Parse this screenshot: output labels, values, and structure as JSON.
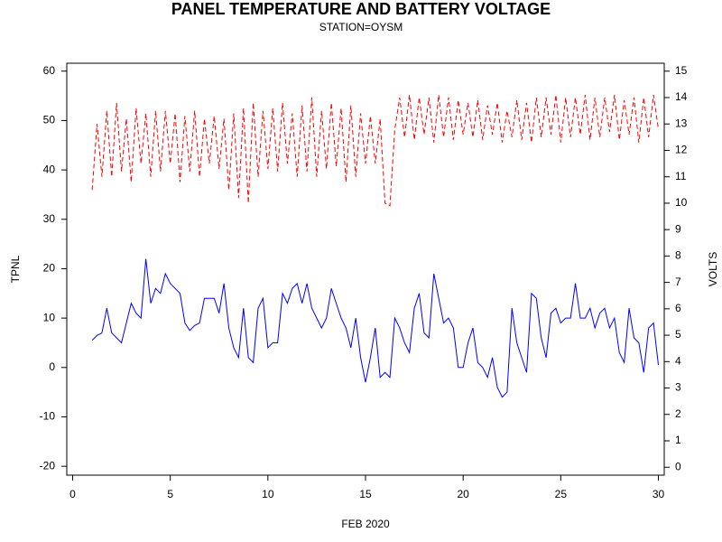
{
  "chart_data": {
    "type": "line",
    "title": "PANEL TEMPERATURE AND BATTERY VOLTAGE",
    "subtitle": "STATION=OYSM",
    "x_label": "FEB 2020",
    "y_label": "TPNL",
    "y2_label": "VOLTS",
    "xlim": [
      -0.3,
      30.3
    ],
    "xticks": [
      0,
      5,
      10,
      15,
      20,
      25,
      30
    ],
    "ylim": [
      -21.8,
      61.6
    ],
    "yticks": [
      -20,
      -10,
      0,
      10,
      20,
      30,
      40,
      50,
      60
    ],
    "y2lim": [
      -0.3,
      15.3
    ],
    "y2ticks": [
      0,
      1,
      2,
      3,
      4,
      5,
      6,
      7,
      8,
      9,
      10,
      11,
      12,
      13,
      14,
      15
    ],
    "x": [
      1,
      1.25,
      1.5,
      1.75,
      2,
      2.25,
      2.5,
      2.75,
      3,
      3.25,
      3.5,
      3.75,
      4,
      4.25,
      4.5,
      4.75,
      5,
      5.25,
      5.5,
      5.75,
      6,
      6.25,
      6.5,
      6.75,
      7,
      7.25,
      7.5,
      7.75,
      8,
      8.25,
      8.5,
      8.75,
      9,
      9.25,
      9.5,
      9.75,
      10,
      10.25,
      10.5,
      10.75,
      11,
      11.25,
      11.5,
      11.75,
      12,
      12.25,
      12.5,
      12.75,
      13,
      13.25,
      13.5,
      13.75,
      14,
      14.25,
      14.5,
      14.75,
      15,
      15.25,
      15.5,
      15.75,
      16,
      16.25,
      16.5,
      16.75,
      17,
      17.25,
      17.5,
      17.75,
      18,
      18.25,
      18.5,
      18.75,
      19,
      19.25,
      19.5,
      19.75,
      20,
      20.25,
      20.5,
      20.75,
      21,
      21.25,
      21.5,
      21.75,
      22,
      22.25,
      22.5,
      22.75,
      23,
      23.25,
      23.5,
      23.75,
      24,
      24.25,
      24.5,
      24.75,
      25,
      25.25,
      25.5,
      25.75,
      26,
      26.25,
      26.5,
      26.75,
      27,
      27.25,
      27.5,
      27.75,
      28,
      28.25,
      28.5,
      28.75,
      29,
      29.25,
      29.5,
      29.75,
      30
    ],
    "series": [
      {
        "color": "#0000ff",
        "line_style": "solid",
        "axis": "y",
        "values": [
          5.5,
          6.5,
          7,
          12,
          7,
          6,
          5,
          9,
          13,
          11,
          10,
          22,
          13,
          16,
          15,
          19,
          17,
          16,
          15,
          9,
          7.5,
          8.5,
          9,
          14,
          14,
          14,
          11,
          17,
          8,
          4,
          2,
          12,
          2,
          1,
          12,
          14,
          4,
          5,
          5,
          15,
          13,
          16,
          17,
          13,
          17,
          12,
          10,
          8,
          10,
          16,
          13,
          10,
          8,
          4,
          10,
          2,
          -3,
          2,
          8,
          -2,
          -1,
          -2,
          10,
          8,
          5,
          3,
          12,
          15,
          7,
          6,
          19,
          14,
          9,
          10,
          8,
          0,
          0,
          5,
          8,
          1,
          0,
          -2,
          2,
          -4,
          -6,
          -5,
          12,
          5,
          2,
          -1,
          15,
          14,
          6,
          2,
          11,
          12,
          9,
          10,
          10,
          17,
          10,
          10,
          12,
          8,
          11,
          12,
          8,
          10,
          3,
          1,
          12,
          6,
          5,
          -1,
          8,
          9,
          0.5
        ]
      },
      {
        "color": "#ff0000",
        "line_style": "dashed",
        "axis": "y2",
        "values": [
          10.5,
          13,
          11,
          13.5,
          11,
          13.8,
          11.2,
          13.2,
          10.8,
          13.6,
          11.5,
          13.4,
          11,
          13.5,
          11.2,
          13.5,
          11.5,
          13.4,
          10.8,
          13.3,
          11.2,
          13.5,
          11,
          13.2,
          11.5,
          13.3,
          11.3,
          13.2,
          10.5,
          13.4,
          10.2,
          13.6,
          10,
          13.8,
          11,
          13.5,
          11.3,
          13.6,
          11.2,
          13.8,
          11.5,
          13.4,
          11,
          13.7,
          11.2,
          14,
          11,
          13.5,
          11.3,
          13.8,
          11.4,
          13.6,
          10.8,
          13.7,
          11,
          13.4,
          11.5,
          13.3,
          11.5,
          13.2,
          10,
          9.9,
          12.8,
          14,
          12.5,
          14.1,
          12.4,
          14,
          12.6,
          14,
          12.3,
          14.1,
          12.5,
          14,
          12.4,
          13.9,
          12.6,
          13.8,
          12.5,
          13.9,
          12.4,
          13.7,
          12.6,
          13.8,
          12.3,
          13.5,
          12.5,
          13.9,
          12.4,
          13.8,
          12.3,
          14,
          12.5,
          14,
          12.6,
          14.1,
          12.3,
          14,
          12.5,
          14,
          12.6,
          14.1,
          12.4,
          14,
          12.5,
          14,
          12.7,
          14.1,
          12.4,
          13.9,
          12.6,
          14,
          12.3,
          14,
          12.5,
          14.1,
          12.8
        ]
      }
    ]
  }
}
